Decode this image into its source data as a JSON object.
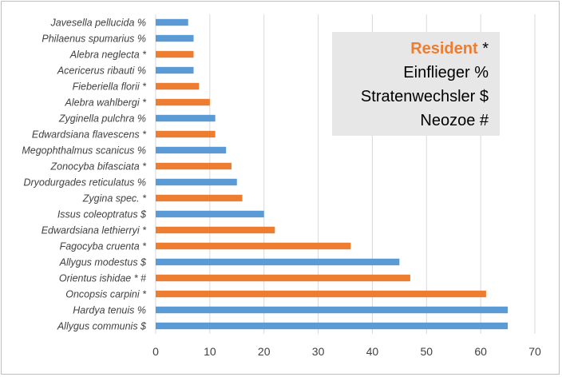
{
  "chart_data": {
    "type": "bar",
    "orientation": "horizontal",
    "categories": [
      "Allygus communis $",
      "Hardya tenuis %",
      "Oncopsis carpini *",
      "Orientus ishidae * #",
      "Allygus modestus $",
      "Fagocyba cruenta *",
      "Edwardsiana lethierryi *",
      "Issus coleoptratus $",
      "Zygina spec. *",
      "Dryodurgades reticulatus %",
      "Zonocyba bifasciata *",
      "Megophthalmus scanicus %",
      "Edwardsiana flavescens *",
      "Zyginella pulchra %",
      "Alebra wahlbergi *",
      "Fieberiella florii *",
      "Acericerus ribauti %",
      "Alebra neglecta *",
      "Philaenus spumarius %",
      "Javesella pellucida %"
    ],
    "values": [
      65,
      65,
      61,
      47,
      45,
      36,
      22,
      20,
      16,
      15,
      14,
      13,
      11,
      11,
      10,
      8,
      7,
      7,
      7,
      6
    ],
    "bar_colors": [
      "#5b9bd5",
      "#5b9bd5",
      "#ed7d31",
      "#ed7d31",
      "#5b9bd5",
      "#ed7d31",
      "#ed7d31",
      "#5b9bd5",
      "#ed7d31",
      "#5b9bd5",
      "#ed7d31",
      "#5b9bd5",
      "#ed7d31",
      "#5b9bd5",
      "#ed7d31",
      "#ed7d31",
      "#5b9bd5",
      "#ed7d31",
      "#5b9bd5",
      "#5b9bd5"
    ],
    "xticks": [
      "0",
      "10",
      "20",
      "30",
      "40",
      "50",
      "60",
      "70"
    ],
    "xlim": [
      0,
      70
    ],
    "grid": "vertical",
    "title": "",
    "xlabel": "",
    "ylabel": ""
  },
  "legend": {
    "resident_label": "Resident",
    "resident_symbol": " *",
    "einflieger": "Einflieger  %",
    "stratenwechsler": "Stratenwechsler $",
    "neozoe": "Neozoe #"
  },
  "colors": {
    "resident": "#ed7d31",
    "other": "#5b9bd5",
    "gridline": "#d9d9d9",
    "legend_bg": "#e7e7e7"
  }
}
